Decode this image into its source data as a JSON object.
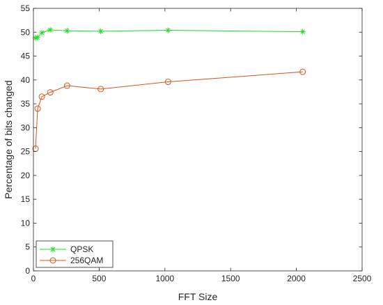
{
  "chart_data": {
    "type": "line",
    "title": "",
    "xlabel": "FFT Size",
    "ylabel": "Percentage of bits changed",
    "xlim": [
      0,
      2500
    ],
    "ylim": [
      0,
      55
    ],
    "xticks": [
      0,
      500,
      1000,
      1500,
      2000,
      2500
    ],
    "yticks": [
      0,
      5,
      10,
      15,
      20,
      25,
      30,
      35,
      40,
      45,
      50,
      55
    ],
    "grid": false,
    "legend_position": "bottom-left",
    "series": [
      {
        "name": "QPSK",
        "color": "#22dd22",
        "marker": "asterisk",
        "points": [
          [
            16,
            48.8
          ],
          [
            32,
            48.9
          ],
          [
            64,
            49.9
          ],
          [
            128,
            50.5
          ],
          [
            256,
            50.3
          ],
          [
            512,
            50.2
          ],
          [
            1024,
            50.4
          ],
          [
            2048,
            50.1
          ]
        ]
      },
      {
        "name": "256QAM",
        "color": "#d95319",
        "marker": "circle",
        "points": [
          [
            16,
            25.6
          ],
          [
            32,
            34.0
          ],
          [
            64,
            36.5
          ],
          [
            128,
            37.4
          ],
          [
            256,
            38.8
          ],
          [
            512,
            38.1
          ],
          [
            1024,
            39.6
          ],
          [
            2048,
            41.7
          ]
        ]
      }
    ]
  }
}
